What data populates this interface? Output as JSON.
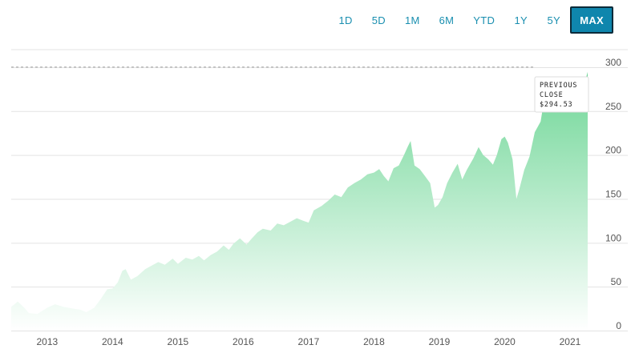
{
  "range_buttons": [
    {
      "label": "1D",
      "active": false
    },
    {
      "label": "5D",
      "active": false
    },
    {
      "label": "1M",
      "active": false
    },
    {
      "label": "6M",
      "active": false
    },
    {
      "label": "YTD",
      "active": false
    },
    {
      "label": "1Y",
      "active": false
    },
    {
      "label": "5Y",
      "active": false
    },
    {
      "label": "MAX",
      "active": true
    }
  ],
  "colors": {
    "accent": "#1a8fb0",
    "active_bg": "#0f86ad",
    "fill_top": "#6ed696",
    "fill_bottom": "#ffffff",
    "grid": "#e3e3e3",
    "reference_line": "#9a9a9a"
  },
  "tooltip": {
    "line1": "PREVIOUS",
    "line2": "CLOSE",
    "value": "$294.53"
  },
  "chart_data": {
    "type": "area",
    "title": "",
    "xlabel": "",
    "ylabel": "",
    "y_axis_side": "right",
    "ylim": [
      0,
      320
    ],
    "yticks": [
      0,
      50,
      100,
      150,
      200,
      250,
      300
    ],
    "xticks": [
      "2013",
      "2014",
      "2015",
      "2016",
      "2017",
      "2018",
      "2019",
      "2020",
      "2021"
    ],
    "xlim": [
      2012.45,
      2021.27
    ],
    "grid": "horizontal",
    "reference_line": {
      "label": "Previous Close",
      "value": 294.53
    },
    "series": [
      {
        "values": [
          [
            2012.45,
            27
          ],
          [
            2012.55,
            33
          ],
          [
            2012.65,
            26
          ],
          [
            2012.72,
            20
          ],
          [
            2012.85,
            19
          ],
          [
            2013.0,
            26
          ],
          [
            2013.12,
            30
          ],
          [
            2013.25,
            27
          ],
          [
            2013.4,
            25
          ],
          [
            2013.5,
            24
          ],
          [
            2013.6,
            21
          ],
          [
            2013.72,
            26
          ],
          [
            2013.82,
            36
          ],
          [
            2013.92,
            47
          ],
          [
            2014.0,
            48
          ],
          [
            2014.08,
            55
          ],
          [
            2014.15,
            68
          ],
          [
            2014.2,
            70
          ],
          [
            2014.28,
            58
          ],
          [
            2014.38,
            62
          ],
          [
            2014.5,
            70
          ],
          [
            2014.6,
            74
          ],
          [
            2014.7,
            78
          ],
          [
            2014.8,
            75
          ],
          [
            2014.92,
            82
          ],
          [
            2015.0,
            76
          ],
          [
            2015.12,
            83
          ],
          [
            2015.22,
            81
          ],
          [
            2015.32,
            85
          ],
          [
            2015.4,
            80
          ],
          [
            2015.5,
            86
          ],
          [
            2015.6,
            90
          ],
          [
            2015.7,
            97
          ],
          [
            2015.78,
            92
          ],
          [
            2015.85,
            99
          ],
          [
            2015.95,
            105
          ],
          [
            2016.05,
            98
          ],
          [
            2016.12,
            104
          ],
          [
            2016.22,
            112
          ],
          [
            2016.3,
            116
          ],
          [
            2016.42,
            114
          ],
          [
            2016.52,
            122
          ],
          [
            2016.62,
            120
          ],
          [
            2016.72,
            124
          ],
          [
            2016.82,
            128
          ],
          [
            2016.92,
            125
          ],
          [
            2017.0,
            123
          ],
          [
            2017.08,
            137
          ],
          [
            2017.2,
            142
          ],
          [
            2017.3,
            148
          ],
          [
            2017.4,
            155
          ],
          [
            2017.5,
            152
          ],
          [
            2017.6,
            163
          ],
          [
            2017.7,
            168
          ],
          [
            2017.8,
            172
          ],
          [
            2017.9,
            178
          ],
          [
            2018.0,
            180
          ],
          [
            2018.08,
            184
          ],
          [
            2018.15,
            176
          ],
          [
            2018.22,
            170
          ],
          [
            2018.3,
            185
          ],
          [
            2018.38,
            188
          ],
          [
            2018.46,
            200
          ],
          [
            2018.52,
            210
          ],
          [
            2018.56,
            216
          ],
          [
            2018.62,
            188
          ],
          [
            2018.7,
            184
          ],
          [
            2018.78,
            176
          ],
          [
            2018.86,
            168
          ],
          [
            2018.93,
            140
          ],
          [
            2018.98,
            143
          ],
          [
            2019.05,
            152
          ],
          [
            2019.12,
            168
          ],
          [
            2019.2,
            180
          ],
          [
            2019.28,
            190
          ],
          [
            2019.35,
            172
          ],
          [
            2019.42,
            183
          ],
          [
            2019.52,
            196
          ],
          [
            2019.6,
            209
          ],
          [
            2019.67,
            200
          ],
          [
            2019.75,
            195
          ],
          [
            2019.82,
            189
          ],
          [
            2019.88,
            200
          ],
          [
            2019.95,
            218
          ],
          [
            2020.0,
            221
          ],
          [
            2020.05,
            214
          ],
          [
            2020.12,
            195
          ],
          [
            2020.18,
            150
          ],
          [
            2020.22,
            160
          ],
          [
            2020.3,
            183
          ],
          [
            2020.38,
            198
          ],
          [
            2020.46,
            226
          ],
          [
            2020.55,
            238
          ],
          [
            2020.62,
            270
          ],
          [
            2020.68,
            275
          ],
          [
            2020.75,
            271
          ],
          [
            2020.82,
            283
          ],
          [
            2020.9,
            280
          ],
          [
            2020.96,
            279
          ],
          [
            2021.02,
            286
          ],
          [
            2021.08,
            268
          ],
          [
            2021.14,
            262
          ],
          [
            2021.2,
            276
          ],
          [
            2021.27,
            294.53
          ]
        ]
      }
    ]
  }
}
